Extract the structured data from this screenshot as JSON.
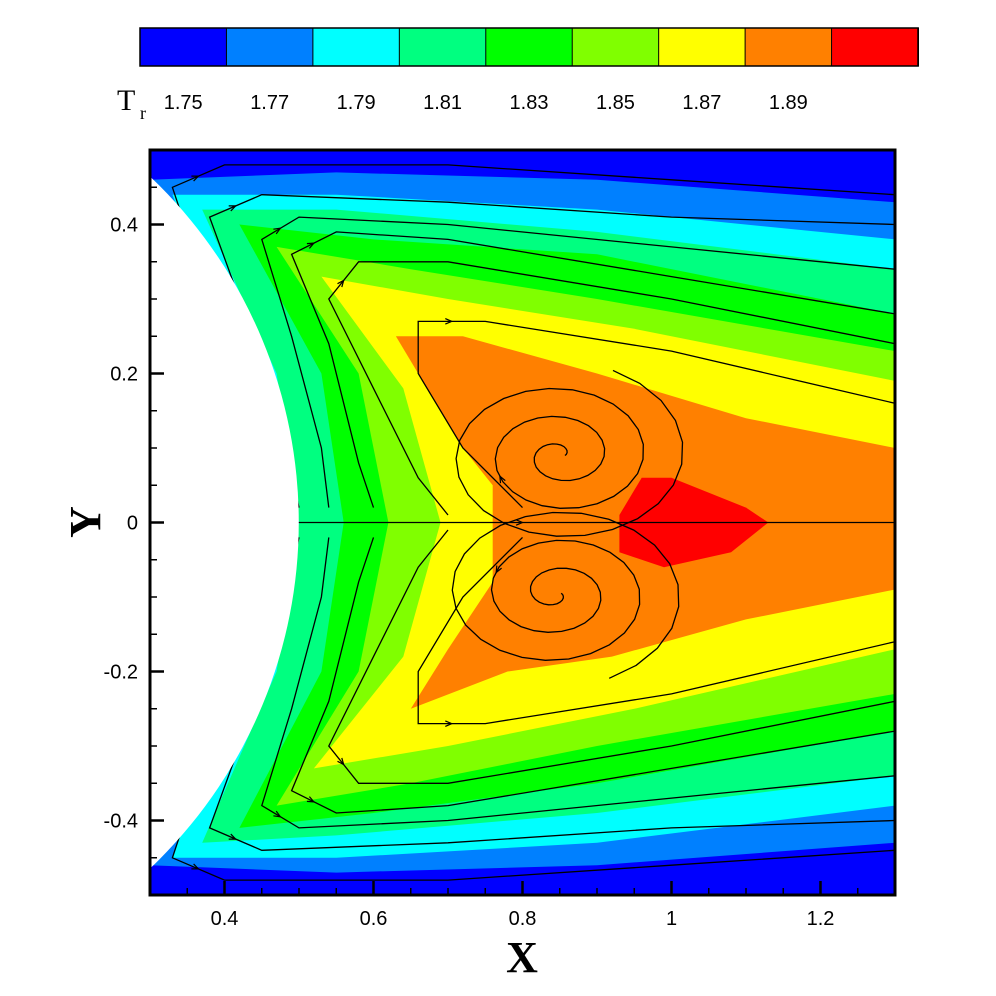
{
  "chart_data": {
    "type": "contour",
    "xlabel": "X",
    "ylabel": "Y",
    "xlim": [
      0.3,
      1.3
    ],
    "ylim": [
      -0.5,
      0.5
    ],
    "x_ticks": [
      0.4,
      0.6,
      0.8,
      1.0,
      1.2
    ],
    "x_tick_labels": [
      "0.4",
      "0.6",
      "0.8",
      "1",
      "1.2"
    ],
    "y_ticks": [
      -0.4,
      -0.2,
      0,
      0.2,
      0.4
    ],
    "y_tick_labels": [
      "-0.4",
      "-0.2",
      "0",
      "0.2",
      "0.4"
    ],
    "colorbar": {
      "variable": "T",
      "subscript": "r",
      "position": "top",
      "levels": [
        1.75,
        1.77,
        1.79,
        1.81,
        1.83,
        1.85,
        1.87,
        1.89
      ],
      "level_labels": [
        "1.75",
        "1.77",
        "1.79",
        "1.81",
        "1.83",
        "1.85",
        "1.87",
        "1.89"
      ],
      "colors": [
        "#0000ff",
        "#0080ff",
        "#00ffff",
        "#00ff80",
        "#00ff00",
        "#80ff00",
        "#ffff00",
        "#ff8000",
        "#ff0000"
      ]
    },
    "body": {
      "shape": "circular arc",
      "center": [
        -0.14,
        0
      ],
      "radius": 0.64
    },
    "vortices": [
      {
        "x": 0.85,
        "y": 0.09
      },
      {
        "x": 0.845,
        "y": -0.095
      }
    ],
    "hot_spot": {
      "x": 1.05,
      "y": 0.0
    }
  }
}
